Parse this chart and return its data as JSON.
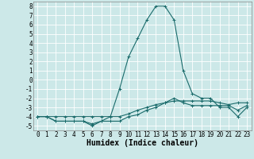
{
  "xlabel": "Humidex (Indice chaleur)",
  "xlim": [
    -0.5,
    23.5
  ],
  "ylim": [
    -5.5,
    8.5
  ],
  "xticks": [
    0,
    1,
    2,
    3,
    4,
    5,
    6,
    7,
    8,
    9,
    10,
    11,
    12,
    13,
    14,
    15,
    16,
    17,
    18,
    19,
    20,
    21,
    22,
    23
  ],
  "yticks": [
    -5,
    -4,
    -3,
    -2,
    -1,
    0,
    1,
    2,
    3,
    4,
    5,
    6,
    7,
    8
  ],
  "background_color": "#cce8e8",
  "grid_color": "#ffffff",
  "line_color": "#1a6b6b",
  "line1_x": [
    0,
    1,
    2,
    3,
    4,
    5,
    6,
    7,
    8,
    9,
    10,
    11,
    12,
    13,
    14,
    15,
    16,
    17,
    18,
    19,
    20,
    21,
    22,
    23
  ],
  "line1_y": [
    -4.0,
    -4.0,
    -4.5,
    -4.5,
    -4.5,
    -4.5,
    -4.8,
    -4.5,
    -4.5,
    -4.5,
    -4.0,
    -3.8,
    -3.3,
    -3.0,
    -2.5,
    -2.0,
    -2.5,
    -2.8,
    -2.8,
    -2.8,
    -2.8,
    -2.8,
    -3.3,
    -2.8
  ],
  "line2_x": [
    0,
    1,
    2,
    3,
    4,
    5,
    6,
    7,
    8,
    9,
    10,
    11,
    12,
    13,
    14,
    15,
    16,
    17,
    18,
    19,
    20,
    21,
    22,
    23
  ],
  "line2_y": [
    -4.0,
    -4.0,
    -4.0,
    -4.0,
    -4.0,
    -4.0,
    -4.0,
    -4.0,
    -4.0,
    -4.0,
    -3.7,
    -3.3,
    -3.0,
    -2.7,
    -2.5,
    -2.3,
    -2.3,
    -2.3,
    -2.3,
    -2.3,
    -2.5,
    -2.7,
    -2.5,
    -2.5
  ],
  "line3_x": [
    0,
    1,
    2,
    3,
    4,
    5,
    6,
    7,
    8,
    9,
    10,
    11,
    12,
    13,
    14,
    15,
    16,
    17,
    18,
    19,
    20,
    21,
    22,
    23
  ],
  "line3_y": [
    -4.0,
    -4.0,
    -4.5,
    -4.5,
    -4.5,
    -4.5,
    -5.0,
    -4.5,
    -4.0,
    -1.0,
    2.5,
    4.5,
    6.5,
    8.0,
    8.0,
    6.5,
    1.0,
    -1.5,
    -2.0,
    -2.0,
    -3.0,
    -3.0,
    -4.0,
    -3.0
  ],
  "font_family": "monospace",
  "tick_fontsize": 5.5,
  "label_fontsize": 7.0
}
